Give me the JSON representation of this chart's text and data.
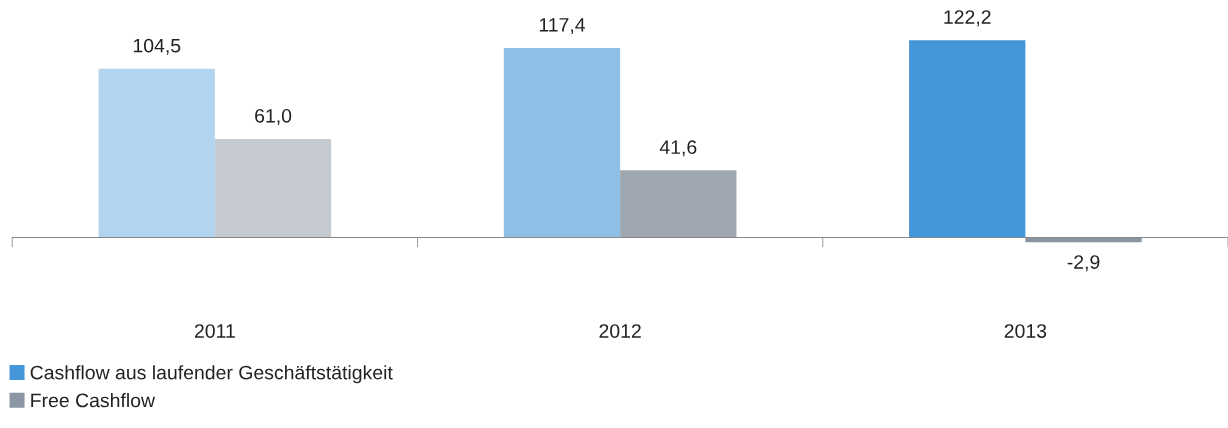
{
  "chart_data": {
    "type": "bar",
    "categories": [
      "2011",
      "2012",
      "2013"
    ],
    "series": [
      {
        "name": "Cashflow aus laufender Geschäftstätigkeit",
        "color": "#4596d8",
        "colors": [
          "#b3d4ef",
          "#90bfe6",
          "#4596d8"
        ],
        "values": [
          104.5,
          117.4,
          122.2
        ],
        "value_labels": [
          "104,5",
          "117,4",
          "122,2"
        ]
      },
      {
        "name": "Free Cashflow",
        "color": "#8a96a3",
        "colors": [
          "#c5cad1",
          "#9fa8b1",
          "#8995a2"
        ],
        "values": [
          61.0,
          41.6,
          -2.9
        ],
        "value_labels": [
          "61,0",
          "41,6",
          "-2,9"
        ]
      }
    ],
    "legend": "bottom left",
    "grid": false,
    "tick_labels": "x"
  }
}
